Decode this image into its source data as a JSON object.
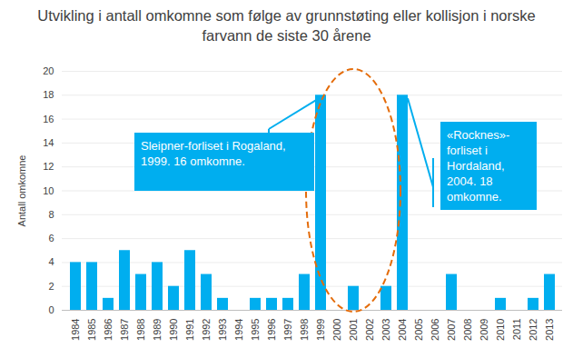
{
  "chart_data": {
    "type": "bar",
    "title": "Utvikling i antall omkomne som følge av grunnstøting eller kollisjon i norske farvann de siste 30 årene",
    "y_label": "Antall omkomne",
    "categories": [
      "1984",
      "1985",
      "1986",
      "1987",
      "1988",
      "1989",
      "1990",
      "1991",
      "1992",
      "1993",
      "1994",
      "1995",
      "1996",
      "1997",
      "1998",
      "1999",
      "2000",
      "2001",
      "2002",
      "2003",
      "2004",
      "2005",
      "2006",
      "2007",
      "2008",
      "2009",
      "2010",
      "2011",
      "2012",
      "2013"
    ],
    "values": [
      4,
      4,
      1,
      5,
      3,
      4,
      2,
      5,
      3,
      1,
      0,
      1,
      1,
      1,
      3,
      18,
      0,
      2,
      0,
      2,
      18,
      0,
      0,
      3,
      0,
      0,
      1,
      0,
      1,
      3
    ],
    "color": "#00aeef",
    "ylim": [
      0,
      20
    ],
    "yticks": [
      0,
      2,
      4,
      6,
      8,
      10,
      12,
      14,
      16,
      18,
      20
    ],
    "grid": true,
    "annotations": [
      {
        "category": "1999",
        "text": "Sleipner-forliset i Rogaland, 1999. 16 omkomne."
      },
      {
        "category": "2004",
        "text": "«Rocknes»-forliset i Hordaland, 2004. 18 omkomne."
      }
    ]
  }
}
